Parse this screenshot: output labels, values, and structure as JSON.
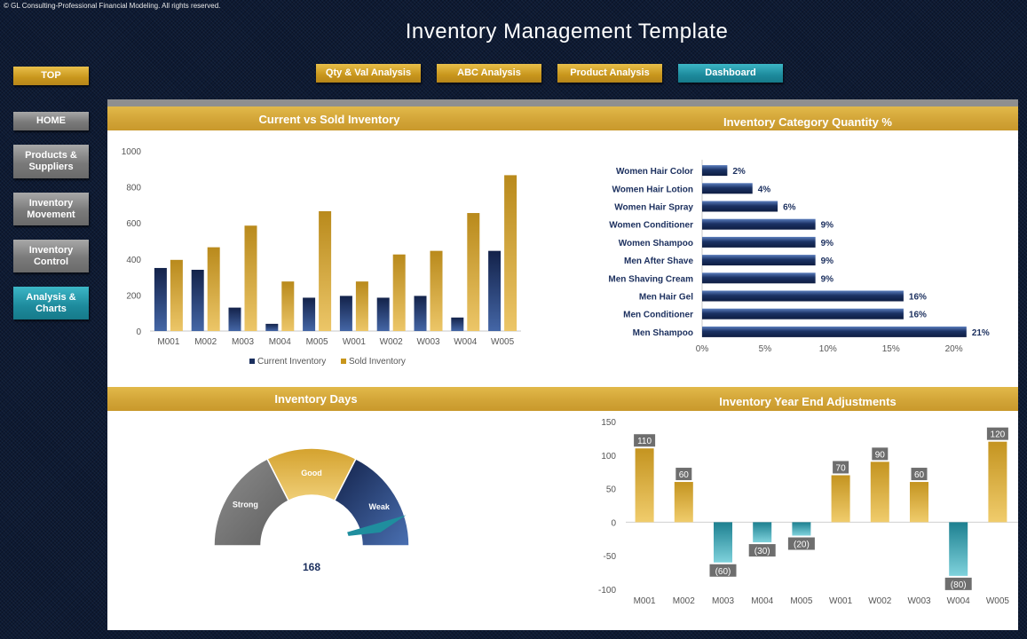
{
  "copyright": "© GL Consulting-Professional Financial Modeling. All rights reserved.",
  "title": "Inventory Management  Template",
  "nav": {
    "top": "TOP",
    "home": "HOME",
    "products": "Products &\nSuppliers",
    "movement": "Inventory\nMovement",
    "control": "Inventory\nControl",
    "analysis": "Analysis &\nCharts"
  },
  "tabs": {
    "qty": "Qty & Val Analysis",
    "abc": "ABC Analysis",
    "product": "Product Analysis",
    "dashboard": "Dashboard"
  },
  "colors": {
    "gold": "#d4a22e",
    "navy": "#1b2f5e",
    "teal": "#1f8e9e",
    "grey": "#7d7d7d"
  },
  "chart_data": [
    {
      "type": "bar",
      "title": "Current vs Sold Inventory",
      "categories": [
        "M001",
        "M002",
        "M003",
        "M004",
        "M005",
        "W001",
        "W002",
        "W003",
        "W004",
        "W005"
      ],
      "series": [
        {
          "name": "Current Inventory",
          "values": [
            350,
            340,
            130,
            40,
            185,
            195,
            185,
            195,
            75,
            445
          ]
        },
        {
          "name": "Sold Inventory",
          "values": [
            395,
            465,
            585,
            275,
            665,
            275,
            425,
            445,
            655,
            865
          ]
        }
      ],
      "ylim": [
        0,
        1000
      ],
      "yticks": [
        "0",
        "200",
        "400",
        "600",
        "800",
        "1000"
      ],
      "legend": "bottom"
    },
    {
      "type": "bar",
      "orientation": "horizontal",
      "title": "Inventory Category Quantity %",
      "categories": [
        "Women Hair Color",
        "Women Hair Lotion",
        "Women Hair Spray",
        "Women Conditioner",
        "Women Shampoo",
        "Men After Shave",
        "Men Shaving Cream",
        "Men Hair Gel",
        "Men Conditioner",
        "Men Shampoo"
      ],
      "values": [
        2,
        4,
        6,
        9,
        9,
        9,
        9,
        16,
        16,
        21
      ],
      "labels": [
        "2%",
        "4%",
        "6%",
        "9%",
        "9%",
        "9%",
        "9%",
        "16%",
        "16%",
        "21%"
      ],
      "xlim": [
        0,
        22
      ],
      "xticks": [
        "0%",
        "5%",
        "10%",
        "15%",
        "20%"
      ]
    },
    {
      "type": "gauge",
      "title": "Inventory Days",
      "bands": [
        "Strong",
        "Good",
        "Weak"
      ],
      "value": 168,
      "value_label": "168"
    },
    {
      "type": "bar",
      "title": "Inventory Year End Adjustments",
      "categories": [
        "M001",
        "M002",
        "M003",
        "M004",
        "M005",
        "W001",
        "W002",
        "W003",
        "W004",
        "W005"
      ],
      "values": [
        110,
        60,
        -60,
        -30,
        -20,
        70,
        90,
        60,
        -80,
        120
      ],
      "labels": [
        "110",
        "60",
        "(60)",
        "(30)",
        "(20)",
        "70",
        "90",
        "60",
        "(80)",
        "120"
      ],
      "ylim": [
        -100,
        150
      ],
      "yticks": [
        "-100",
        "-50",
        "0",
        "50",
        "100",
        "150"
      ]
    }
  ]
}
